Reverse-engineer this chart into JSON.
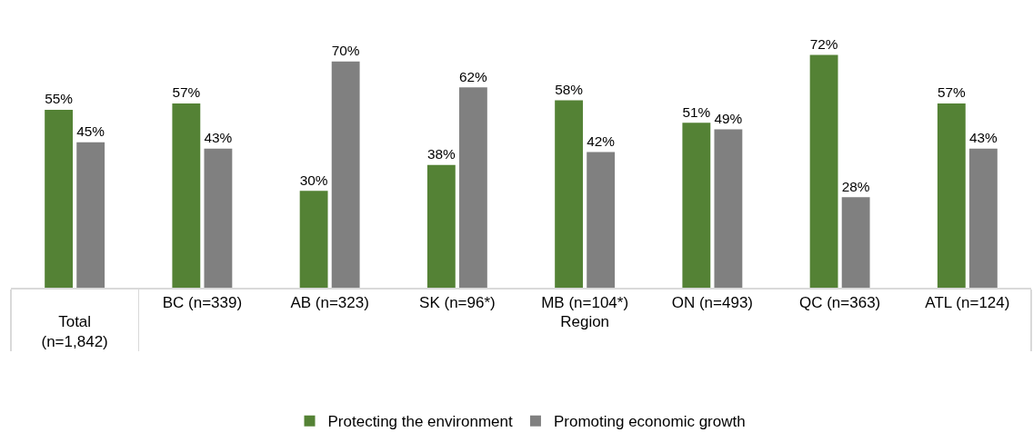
{
  "chart_data": {
    "type": "bar",
    "categories": [
      "Total (n=1,842)",
      "BC (n=339)",
      "AB (n=323)",
      "SK (n=96*)",
      "MB (n=104*)",
      "ON (n=493)",
      "QC (n=363)",
      "ATL (n=124)"
    ],
    "xlabel": "Region",
    "series": [
      {
        "name": "Protecting the environment",
        "color": "#548235",
        "values": [
          55,
          57,
          30,
          38,
          58,
          51,
          72,
          57
        ],
        "value_labels": [
          "55%",
          "57%",
          "30%",
          "38%",
          "58%",
          "51%",
          "72%",
          "57%"
        ]
      },
      {
        "name": "Promoting economic growth",
        "color": "#808080",
        "values": [
          45,
          43,
          70,
          62,
          42,
          49,
          28,
          43
        ],
        "value_labels": [
          "45%",
          "43%",
          "70%",
          "62%",
          "42%",
          "49%",
          "28%",
          "43%"
        ]
      }
    ],
    "legend": "bottom",
    "grid": false,
    "tick_labels": "x"
  }
}
